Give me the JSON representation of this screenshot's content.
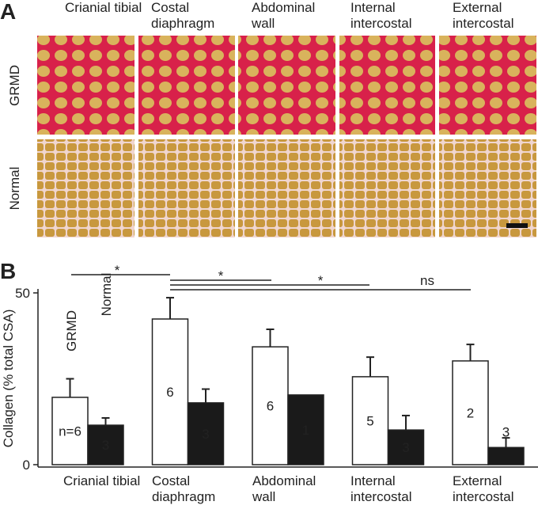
{
  "panel_a": {
    "label": "A"
  },
  "chart_data": {
    "type": "bar",
    "panel_label": "B",
    "y_label": "Collagen (% total CSA)",
    "categories": [
      "Crianial tibial",
      "Costal diaphragm",
      "Abdominal wall",
      "Internal intercostal",
      "External intercostal"
    ],
    "series": [
      {
        "name": "GRMD",
        "color": "#ffffff",
        "values": [
          19.6,
          42.4,
          34.3,
          25.6,
          30.2
        ],
        "errors": [
          5.4,
          6.2,
          5.1,
          5.7,
          4.8
        ],
        "n_labels": [
          "n=6",
          "6",
          "6",
          "5",
          "2"
        ]
      },
      {
        "name": "Normal",
        "color": "#1a1a1a",
        "values": [
          11.5,
          18,
          20.3,
          10.1,
          5
        ],
        "errors": [
          2.1,
          4,
          null,
          4.2,
          2.8
        ],
        "n_labels": [
          "3",
          "3",
          "1",
          "3",
          "3"
        ]
      }
    ],
    "ylim": [
      0,
      50
    ],
    "yticks": [
      0,
      50
    ],
    "annotations": [
      {
        "text": "*"
      },
      {
        "text": "*"
      },
      {
        "text": "*"
      },
      {
        "text": "ns"
      }
    ]
  }
}
